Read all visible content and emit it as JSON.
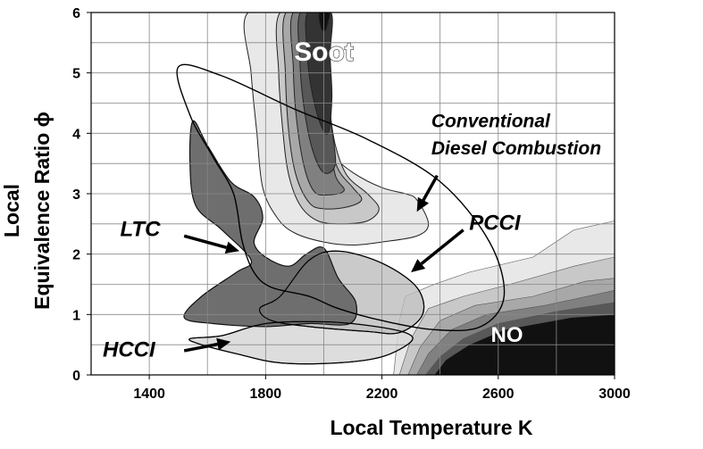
{
  "chart_data": {
    "type": "contour",
    "xlabel": "Local Temperature K",
    "ylabel_line1": "Local",
    "ylabel_line2": "Equivalence Ratio ϕ",
    "xlim": [
      1200,
      3000
    ],
    "ylim": [
      0,
      6
    ],
    "x_ticks": [
      1400,
      1800,
      2200,
      2600,
      3000
    ],
    "x_tick_labels": [
      "1400",
      "1800",
      "2200",
      "2600",
      "3000"
    ],
    "y_ticks": [
      0,
      1,
      2,
      3,
      4,
      5,
      6
    ],
    "y_tick_labels": [
      "0",
      "1",
      "2",
      "3",
      "4",
      "5",
      "6"
    ],
    "grid": true,
    "colors": {
      "background": "#ffffff",
      "grid": "#888888",
      "shade_1": "#e8e8e8",
      "shade_2": "#c8c8c8",
      "shade_3": "#a8a8a8",
      "shade_4": "#808080",
      "shade_5": "#585858",
      "shade_6": "#333333",
      "shade_7": "#111111",
      "ltc_fill": "#6e6e6e",
      "pcci_fill": "#bdbdbd",
      "hcci_fill": "#d7d7d7"
    },
    "regions": {
      "soot": {
        "label": "Soot",
        "levels": [
          {
            "shade": "shade_1",
            "points": [
              [
                1960,
                6
              ],
              [
                1970,
                4.9
              ],
              [
                1990,
                4.5
              ],
              [
                2000,
                4.0
              ],
              [
                2030,
                3.65
              ],
              [
                2100,
                3.35
              ],
              [
                2200,
                3.1
              ],
              [
                2280,
                3.0
              ],
              [
                2320,
                2.9
              ],
              [
                2360,
                2.5
              ],
              [
                2320,
                2.3
              ],
              [
                2200,
                2.2
              ],
              [
                2100,
                2.15
              ],
              [
                2000,
                2.2
              ],
              [
                1900,
                2.35
              ],
              [
                1840,
                2.6
              ],
              [
                1790,
                3.1
              ],
              [
                1770,
                4.0
              ],
              [
                1750,
                5.0
              ],
              [
                1740,
                6
              ]
            ]
          },
          {
            "shade": "shade_2",
            "points": [
              [
                1850,
                6
              ],
              [
                1845,
                5.0
              ],
              [
                1860,
                4.0
              ],
              [
                1880,
                3.3
              ],
              [
                1920,
                2.8
              ],
              [
                1980,
                2.55
              ],
              [
                2060,
                2.5
              ],
              [
                2150,
                2.55
              ],
              [
                2190,
                2.75
              ],
              [
                2150,
                3.0
              ],
              [
                2080,
                3.3
              ],
              [
                2040,
                3.8
              ],
              [
                2020,
                4.4
              ],
              [
                2000,
                5.1
              ],
              [
                1990,
                5.5
              ],
              [
                2000,
                6
              ]
            ]
          },
          {
            "shade": "shade_3",
            "points": [
              [
                1870,
                6
              ],
              [
                1868,
                5.0
              ],
              [
                1880,
                4.0
              ],
              [
                1905,
                3.3
              ],
              [
                1950,
                2.85
              ],
              [
                2000,
                2.75
              ],
              [
                2080,
                2.78
              ],
              [
                2130,
                2.9
              ],
              [
                2100,
                3.1
              ],
              [
                2050,
                3.4
              ],
              [
                2020,
                3.9
              ],
              [
                2005,
                4.5
              ],
              [
                1995,
                5.2
              ],
              [
                1998,
                6
              ]
            ]
          },
          {
            "shade": "shade_4",
            "points": [
              [
                1895,
                6
              ],
              [
                1895,
                5.1
              ],
              [
                1905,
                4.3
              ],
              [
                1930,
                3.5
              ],
              [
                1965,
                3.05
              ],
              [
                2010,
                2.98
              ],
              [
                2070,
                3.05
              ],
              [
                2040,
                3.3
              ],
              [
                2020,
                3.9
              ],
              [
                2010,
                4.6
              ],
              [
                2005,
                5.3
              ],
              [
                2010,
                6
              ]
            ]
          },
          {
            "shade": "shade_5",
            "points": [
              [
                1920,
                6
              ],
              [
                1918,
                5.2
              ],
              [
                1930,
                4.5
              ],
              [
                1960,
                3.75
              ],
              [
                2000,
                3.35
              ],
              [
                2040,
                3.5
              ],
              [
                2025,
                4.2
              ],
              [
                2015,
                4.9
              ],
              [
                2015,
                5.5
              ],
              [
                2020,
                6
              ]
            ]
          },
          {
            "shade": "shade_6",
            "points": [
              [
                1945,
                6
              ],
              [
                1942,
                5.4
              ],
              [
                1955,
                4.8
              ],
              [
                1985,
                4.2
              ],
              [
                2015,
                4.0
              ],
              [
                2028,
                4.6
              ],
              [
                2022,
                5.3
              ],
              [
                2025,
                6
              ]
            ]
          },
          {
            "shade": "shade_7",
            "points": [
              [
                1985,
                6
              ],
              [
                1990,
                5.75
              ],
              [
                2005,
                5.7
              ],
              [
                2015,
                5.85
              ],
              [
                2020,
                6
              ]
            ]
          }
        ]
      },
      "no": {
        "label": "NO",
        "levels": [
          {
            "shade": "shade_1",
            "points": [
              [
                2240,
                0
              ],
              [
                2260,
                0.9
              ],
              [
                2280,
                1.3
              ],
              [
                2380,
                1.5
              ],
              [
                2500,
                1.7
              ],
              [
                2720,
                1.95
              ],
              [
                2860,
                2.4
              ],
              [
                3000,
                2.55
              ],
              [
                3000,
                0
              ]
            ]
          },
          {
            "shade": "shade_2",
            "points": [
              [
                2260,
                0
              ],
              [
                2300,
                0.6
              ],
              [
                2360,
                1.1
              ],
              [
                2480,
                1.3
              ],
              [
                2640,
                1.5
              ],
              [
                2860,
                1.8
              ],
              [
                3000,
                1.95
              ],
              [
                3000,
                0
              ]
            ]
          },
          {
            "shade": "shade_3",
            "points": [
              [
                2290,
                0
              ],
              [
                2330,
                0.45
              ],
              [
                2400,
                0.9
              ],
              [
                2520,
                1.15
              ],
              [
                2720,
                1.3
              ],
              [
                2900,
                1.55
              ],
              [
                3000,
                1.6
              ],
              [
                3000,
                0
              ]
            ]
          },
          {
            "shade": "shade_4",
            "points": [
              [
                2320,
                0
              ],
              [
                2360,
                0.35
              ],
              [
                2440,
                0.75
              ],
              [
                2560,
                1.0
              ],
              [
                2760,
                1.15
              ],
              [
                3000,
                1.4
              ],
              [
                3000,
                0
              ]
            ]
          },
          {
            "shade": "shade_5",
            "points": [
              [
                2350,
                0
              ],
              [
                2400,
                0.3
              ],
              [
                2480,
                0.6
              ],
              [
                2600,
                0.85
              ],
              [
                2800,
                1.05
              ],
              [
                3000,
                1.2
              ],
              [
                3000,
                0
              ]
            ]
          },
          {
            "shade": "shade_7",
            "points": [
              [
                2380,
                0
              ],
              [
                2420,
                0.25
              ],
              [
                2500,
                0.5
              ],
              [
                2620,
                0.75
              ],
              [
                2850,
                0.95
              ],
              [
                3000,
                1.0
              ],
              [
                3000,
                0
              ]
            ]
          }
        ]
      },
      "ltc": {
        "label": "LTC",
        "points": [
          [
            1550,
            4.2
          ],
          [
            1600,
            3.8
          ],
          [
            1680,
            3.2
          ],
          [
            1760,
            2.95
          ],
          [
            1790,
            2.6
          ],
          [
            1760,
            2.2
          ],
          [
            1800,
            1.95
          ],
          [
            1880,
            1.8
          ],
          [
            1940,
            2.0
          ],
          [
            2000,
            2.1
          ],
          [
            2050,
            1.6
          ],
          [
            2110,
            1.2
          ],
          [
            2090,
            0.85
          ],
          [
            1950,
            0.85
          ],
          [
            1800,
            0.8
          ],
          [
            1620,
            0.85
          ],
          [
            1520,
            0.95
          ],
          [
            1580,
            1.3
          ],
          [
            1700,
            1.7
          ],
          [
            1750,
            1.9
          ],
          [
            1650,
            2.4
          ],
          [
            1560,
            2.8
          ],
          [
            1540,
            3.5
          ]
        ]
      },
      "pcci": {
        "label": "PCCI",
        "points": [
          [
            1780,
            1.1
          ],
          [
            1850,
            1.3
          ],
          [
            1950,
            1.9
          ],
          [
            2050,
            2.05
          ],
          [
            2200,
            1.85
          ],
          [
            2320,
            1.45
          ],
          [
            2340,
            1.0
          ],
          [
            2260,
            0.7
          ],
          [
            2150,
            0.72
          ],
          [
            1950,
            0.8
          ],
          [
            1820,
            0.9
          ]
        ]
      },
      "hcci": {
        "label": "HCCI",
        "points": [
          [
            1540,
            0.6
          ],
          [
            1650,
            0.65
          ],
          [
            1800,
            0.85
          ],
          [
            2000,
            0.88
          ],
          [
            2150,
            0.82
          ],
          [
            2280,
            0.7
          ],
          [
            2300,
            0.55
          ],
          [
            2200,
            0.3
          ],
          [
            2050,
            0.2
          ],
          [
            1850,
            0.2
          ],
          [
            1700,
            0.35
          ],
          [
            1580,
            0.5
          ]
        ]
      },
      "cdc": {
        "label": "Conventional Diesel Combustion",
        "points": [
          [
            1500,
            5.1
          ],
          [
            1650,
            4.95
          ],
          [
            1900,
            4.4
          ],
          [
            2150,
            3.9
          ],
          [
            2400,
            3.2
          ],
          [
            2570,
            2.2
          ],
          [
            2620,
            1.3
          ],
          [
            2540,
            0.8
          ],
          [
            2380,
            0.75
          ],
          [
            2200,
            0.9
          ],
          [
            2050,
            1.1
          ],
          [
            1950,
            1.3
          ],
          [
            1820,
            1.45
          ],
          [
            1760,
            1.7
          ],
          [
            1720,
            2.2
          ],
          [
            1690,
            3.0
          ],
          [
            1620,
            3.6
          ],
          [
            1540,
            4.3
          ]
        ]
      }
    },
    "annotations": [
      {
        "text": "Soot",
        "x": 2000,
        "y": 5.2
      },
      {
        "text": "NO",
        "x": 2630,
        "y": 0.55
      },
      {
        "text": "Conventional",
        "x": 2370,
        "y": 4.1
      },
      {
        "text": "Diesel Combustion",
        "x": 2370,
        "y": 3.65
      },
      {
        "text": "PCCI",
        "x": 2500,
        "y": 2.4
      },
      {
        "text": "LTC",
        "x": 1300,
        "y": 2.3
      },
      {
        "text": "HCCI",
        "x": 1240,
        "y": 0.3
      }
    ],
    "arrows": [
      {
        "from": [
          2390,
          3.3
        ],
        "to": [
          2320,
          2.7
        ]
      },
      {
        "from": [
          2480,
          2.4
        ],
        "to": [
          2300,
          1.7
        ]
      },
      {
        "from": [
          1520,
          2.3
        ],
        "to": [
          1710,
          2.05
        ]
      },
      {
        "from": [
          1520,
          0.4
        ],
        "to": [
          1680,
          0.55
        ]
      }
    ]
  }
}
